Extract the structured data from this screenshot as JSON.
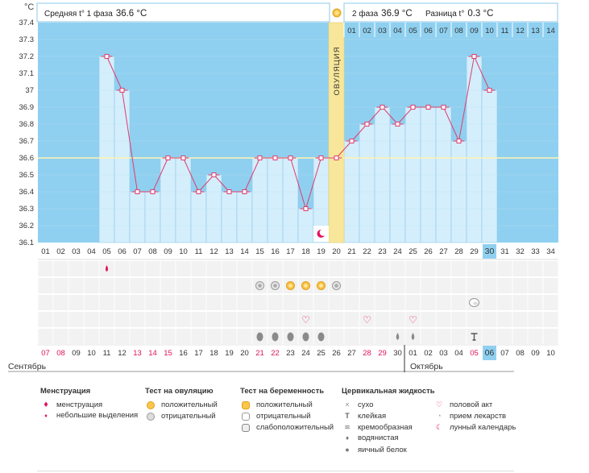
{
  "colors": {
    "sky": "#8fd0f0",
    "bar": "#d4eefc",
    "barEdge": "#8ec8ea",
    "line": "#e03c6c",
    "ovul": "#f8e79a",
    "cover": "#5e4b7e",
    "red": "#e0115f",
    "lightRow": "#f2f2f2"
  },
  "header": {
    "unit": "°C",
    "phase1": {
      "label": "Средняя t° 1 фаза",
      "value": "36.6 °C"
    },
    "phase2": {
      "label": "2 фаза",
      "value": "36.9 °C"
    },
    "diff": {
      "label": "Разница t°",
      "value": "0.3 °C"
    },
    "ovulation_label": "ОВУЛЯЦИЯ"
  },
  "chart_data": {
    "type": "line",
    "title": "",
    "ylabel": "°C",
    "ylim": [
      36.1,
      37.4
    ],
    "yticks": [
      36.1,
      36.2,
      36.3,
      36.4,
      36.5,
      36.6,
      36.7,
      36.8,
      36.9,
      37,
      37.1,
      37.2,
      37.3,
      37.4
    ],
    "cover_line": 36.6,
    "ovulation_day": 20,
    "cycle_days": [
      "01",
      "02",
      "03",
      "04",
      "05",
      "06",
      "07",
      "08",
      "09",
      "10",
      "11",
      "12",
      "13",
      "14",
      "15",
      "16",
      "17",
      "18",
      "19",
      "20",
      "21",
      "22",
      "23",
      "24",
      "25",
      "26",
      "27",
      "28",
      "29",
      "30",
      "31",
      "32",
      "33",
      "34"
    ],
    "current_day": "30",
    "temperatures": [
      null,
      null,
      null,
      null,
      37.2,
      37.0,
      36.4,
      36.4,
      36.6,
      36.6,
      36.4,
      36.5,
      36.4,
      36.4,
      36.6,
      36.6,
      36.6,
      36.3,
      36.6,
      36.6,
      36.7,
      36.8,
      36.9,
      36.8,
      36.9,
      36.9,
      36.9,
      36.7,
      37.2,
      37.0,
      null,
      null,
      null,
      null
    ],
    "post_ovulation_days": [
      "01",
      "02",
      "03",
      "04",
      "05",
      "06",
      "07",
      "08",
      "09",
      "10",
      "11",
      "12",
      "13",
      "14"
    ],
    "moon_day": 19
  },
  "symbols": {
    "menstruation": [
      5
    ],
    "ovulation_tests": [
      {
        "day": 15,
        "type": "neg"
      },
      {
        "day": 16,
        "type": "neg"
      },
      {
        "day": 17,
        "type": "pos"
      },
      {
        "day": 18,
        "type": "pos"
      },
      {
        "day": 19,
        "type": "pos"
      },
      {
        "day": 20,
        "type": "neg"
      }
    ],
    "pregnancy_tests": [
      {
        "day": 29,
        "type": "neg"
      }
    ],
    "intercourse": [
      18,
      22,
      25
    ],
    "fluid": [
      {
        "day": 15,
        "type": "eggwhite"
      },
      {
        "day": 16,
        "type": "eggwhite"
      },
      {
        "day": 17,
        "type": "eggwhite"
      },
      {
        "day": 18,
        "type": "eggwhite"
      },
      {
        "day": 19,
        "type": "eggwhite"
      },
      {
        "day": 24,
        "type": "watery"
      },
      {
        "day": 25,
        "type": "watery"
      },
      {
        "day": 29,
        "type": "sticky"
      }
    ]
  },
  "dates": {
    "values": [
      "07",
      "08",
      "09",
      "10",
      "11",
      "12",
      "13",
      "14",
      "15",
      "16",
      "17",
      "18",
      "19",
      "20",
      "21",
      "22",
      "23",
      "24",
      "25",
      "26",
      "27",
      "28",
      "29",
      "30",
      "01",
      "02",
      "03",
      "04",
      "05",
      "06",
      "07",
      "08",
      "09",
      "10"
    ],
    "red": [
      0,
      1,
      6,
      7,
      8,
      14,
      15,
      21,
      22,
      28
    ],
    "today_index": 29,
    "month1": "Сентябрь",
    "month2": "Октябрь",
    "month2_index": 24
  },
  "legend": {
    "menses": {
      "title": "Менструация",
      "items": [
        "менструация",
        "небольшие выделения"
      ]
    },
    "ovulation_test": {
      "title": "Тест на овуляцию",
      "items": [
        "положительный",
        "отрицательный"
      ]
    },
    "pregnancy_test": {
      "title": "Тест на беременность",
      "items": [
        "положительный",
        "отрицательный",
        "слабоположительный"
      ]
    },
    "fluid": {
      "title": "Цервикальная жидкость",
      "items": [
        "сухо",
        "клейкая",
        "кремообразная",
        "водянистая",
        "яичный белок"
      ]
    },
    "other": {
      "items": [
        "половой акт",
        "прием лекарств",
        "лунный календарь"
      ]
    }
  }
}
